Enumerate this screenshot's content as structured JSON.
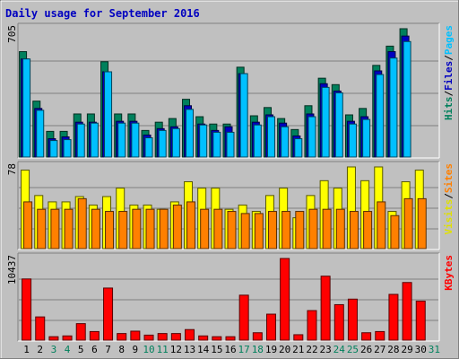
{
  "chart_data": [
    {
      "type": "bar",
      "title": "Daily usage for September 2016",
      "categories": [
        "1",
        "2",
        "3",
        "4",
        "5",
        "6",
        "7",
        "8",
        "9",
        "10",
        "11",
        "12",
        "13",
        "14",
        "15",
        "16",
        "17",
        "18",
        "19",
        "20",
        "21",
        "22",
        "23",
        "24",
        "25",
        "26",
        "27",
        "28",
        "29",
        "30",
        "31"
      ],
      "weekend_days": [
        "3",
        "4",
        "10",
        "11",
        "17",
        "18",
        "24",
        "25",
        "31"
      ],
      "ymax_label": "705",
      "ylim": [
        0,
        705
      ],
      "grid": true,
      "side_legend": [
        {
          "text": "Hits",
          "color": "#00805c"
        },
        {
          "text": "Files",
          "color": "#0000c0"
        },
        {
          "text": "Pages",
          "color": "#00c0ff"
        }
      ],
      "separator": "/",
      "series": [
        {
          "name": "Hits",
          "color": "#00805c",
          "values": [
            580,
            310,
            145,
            145,
            240,
            240,
            525,
            240,
            240,
            150,
            195,
            215,
            320,
            225,
            185,
            185,
            495,
            230,
            275,
            215,
            155,
            285,
            435,
            400,
            235,
            270,
            505,
            610,
            705,
            null,
            null
          ]
        },
        {
          "name": "Files",
          "color": "#0000c0",
          "values": [
            540,
            270,
            105,
            115,
            195,
            195,
            470,
            200,
            200,
            125,
            160,
            170,
            285,
            185,
            150,
            170,
            460,
            195,
            235,
            190,
            120,
            240,
            405,
            365,
            200,
            225,
            475,
            580,
            665,
            null,
            null
          ]
        },
        {
          "name": "Pages",
          "color": "#00c0ff",
          "values": [
            540,
            260,
            95,
            100,
            185,
            190,
            470,
            190,
            190,
            110,
            150,
            160,
            265,
            180,
            140,
            140,
            460,
            180,
            225,
            170,
            105,
            225,
            385,
            355,
            185,
            210,
            455,
            545,
            635,
            null,
            null
          ]
        }
      ]
    },
    {
      "type": "bar",
      "ymax_label": "78",
      "ylim": [
        0,
        78
      ],
      "grid": true,
      "side_legend": [
        {
          "text": "Visits",
          "color": "#e0e000"
        },
        {
          "text": "Sites",
          "color": "#ff8000"
        }
      ],
      "separator": "/",
      "series": [
        {
          "name": "Visits",
          "color": "#ffff00",
          "values": [
            75,
            51,
            45,
            45,
            50,
            42,
            50,
            58,
            42,
            42,
            38,
            45,
            64,
            58,
            58,
            38,
            42,
            36,
            51,
            58,
            30,
            51,
            65,
            58,
            78,
            65,
            78,
            36,
            64,
            75,
            null
          ]
        },
        {
          "name": "Sites",
          "color": "#ff8000",
          "values": [
            45,
            38,
            38,
            38,
            48,
            38,
            36,
            36,
            38,
            38,
            38,
            42,
            45,
            38,
            38,
            36,
            34,
            34,
            36,
            36,
            36,
            38,
            38,
            38,
            36,
            36,
            45,
            32,
            48,
            48,
            null
          ]
        }
      ]
    },
    {
      "type": "bar",
      "ymax_label": "10437",
      "ylim": [
        0,
        10437
      ],
      "grid": true,
      "side_legend": [
        {
          "text": "KBytes",
          "color": "#ff0000"
        }
      ],
      "series": [
        {
          "name": "KBytes",
          "color": "#ff0000",
          "values": [
            7850,
            3050,
            550,
            650,
            2200,
            1200,
            6700,
            950,
            1250,
            750,
            950,
            950,
            1450,
            650,
            550,
            550,
            5800,
            1050,
            3400,
            10437,
            800,
            3850,
            8200,
            4600,
            5300,
            1050,
            1200,
            5900,
            7400,
            5050,
            null
          ]
        }
      ]
    }
  ]
}
